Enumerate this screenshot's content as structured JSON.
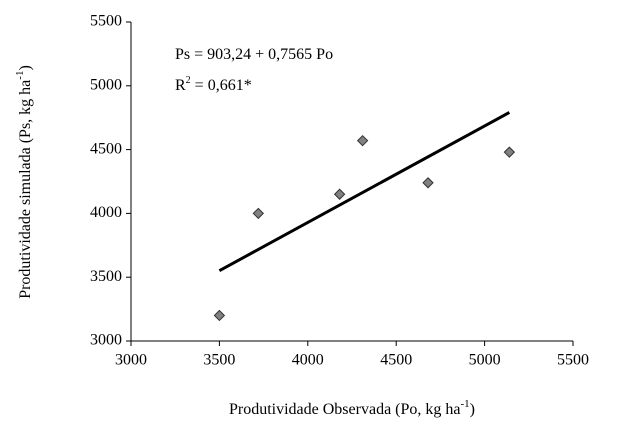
{
  "chart_data": {
    "type": "scatter",
    "annotations": [
      [
        "Ps = 903,24 + 0,7565 Po"
      ],
      [
        "R",
        "2",
        " = 0,661*"
      ]
    ],
    "xlabel": [
      "Produtividade Observada (Po, kg ha",
      "-1",
      ")"
    ],
    "ylabel": [
      "Produtividade simulada (Ps,  kg ha",
      "-1",
      ")"
    ],
    "x": [
      3500,
      3720,
      4180,
      4310,
      4680,
      5140
    ],
    "series": [
      {
        "color": "#808080",
        "values": [
          3200,
          4000,
          4150,
          4570,
          4240,
          4480
        ]
      }
    ],
    "trendline": {
      "x": [
        3500,
        5140
      ],
      "values": [
        3551,
        4791
      ],
      "color": "#000000"
    },
    "xlim": [
      3000,
      5500
    ],
    "xticks": [
      3000,
      3500,
      4000,
      4500,
      5000,
      5500
    ],
    "ylim": [
      3000,
      5500
    ],
    "yticks": [
      3000,
      3500,
      4000,
      4500,
      5000,
      5500
    ]
  }
}
